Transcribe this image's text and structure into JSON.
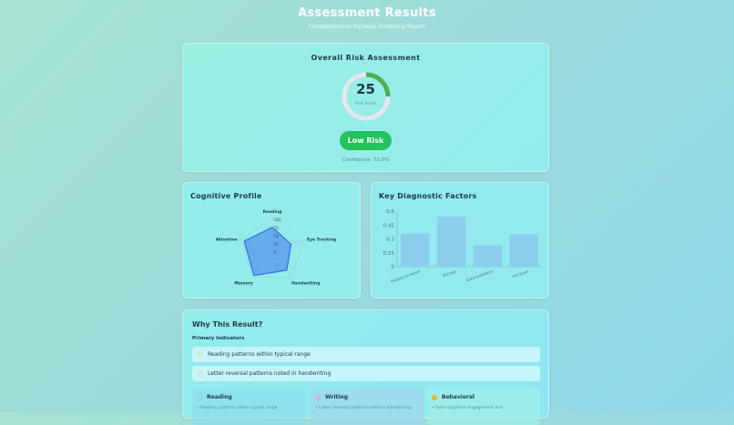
{
  "header": {
    "title": "Assessment Results",
    "subtitle": "Comprehensive Dyslexia Screening Report"
  },
  "overall": {
    "title": "Overall Risk Assessment",
    "score": "25",
    "score_value": 25,
    "score_label": "Risk Score",
    "risk_level": "Low Risk",
    "confidence": "Confidence: 72.0%",
    "colors": {
      "ring": "#4caf50",
      "badge": "#22c25d"
    }
  },
  "cognitive": {
    "title": "Cognitive Profile"
  },
  "factors": {
    "title": "Key Diagnostic Factors"
  },
  "chart_data": [
    {
      "type": "radar",
      "axes": [
        "Reading",
        "Eye Tracking",
        "Handwriting",
        "Memory",
        "Attention"
      ],
      "values": [
        70,
        60,
        75,
        95,
        90
      ],
      "ticks": [
        "0",
        "25",
        "50",
        "75",
        "100"
      ],
      "range": [
        0,
        100
      ],
      "color": "#2f6fe0"
    },
    {
      "type": "bar",
      "categories": [
        "Fixation Duration",
        "Entropy",
        "Autocorrelation",
        "FVI Score"
      ],
      "values": [
        0.36,
        0.54,
        0.23,
        0.35
      ],
      "yticks": [
        "0",
        "0.15",
        "0.3",
        "0.45",
        "0.6"
      ],
      "ylim": [
        0,
        0.6
      ],
      "color": "#8ccdee"
    }
  ],
  "why": {
    "title": "Why This Result?",
    "primary_label": "Primary Indicators",
    "indicators": [
      "Reading patterns within typical range",
      "Letter reversal patterns noted in handwriting"
    ],
    "categories": [
      {
        "title": "Reading",
        "item": "• Reading patterns within typical range"
      },
      {
        "title": "Writing",
        "item": "• Letter reversal patterns noted in handwriting"
      },
      {
        "title": "Behavioral",
        "item": "• Good cognitive engagement and"
      }
    ]
  }
}
